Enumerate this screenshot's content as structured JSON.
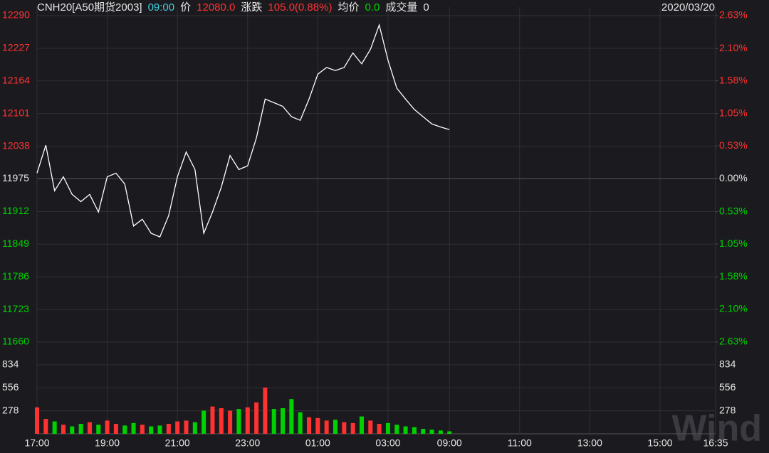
{
  "header": {
    "symbol": "CNH20[A50期货2003]",
    "time": "09:00",
    "price_label": "价",
    "price": "12080.0",
    "change_label": "涨跌",
    "change": "105.0(0.88%)",
    "avg_label": "均价",
    "avg": "0.0",
    "volume_label": "成交量",
    "volume": "0",
    "date": "2020/03/20"
  },
  "watermark": "Wind",
  "chart_data": [
    {
      "type": "line",
      "color": "#ffffff",
      "grid": true,
      "x": [
        0,
        15,
        30,
        45,
        60,
        75,
        90,
        105,
        120,
        135,
        150,
        165,
        180,
        195,
        210,
        225,
        240,
        255,
        270,
        285,
        300,
        315,
        330,
        345,
        360,
        375,
        390,
        405,
        420,
        435,
        450,
        465,
        480,
        495,
        510,
        525,
        540,
        555,
        570,
        585,
        600,
        615,
        630,
        645,
        660,
        675,
        690,
        705
      ],
      "values": [
        11986,
        12040,
        11952,
        11979,
        11945,
        11931,
        11945,
        11911,
        11979,
        11986,
        11965,
        11884,
        11897,
        11870,
        11863,
        11904,
        11979,
        12027,
        11993,
        11870,
        11911,
        11959,
        12020,
        11993,
        12000,
        12054,
        12129,
        12122,
        12115,
        12095,
        12088,
        12129,
        12177,
        12190,
        12184,
        12190,
        12218,
        12197,
        12225,
        12272,
        12204,
        12150,
        12129,
        12109,
        12095,
        12081,
        12075,
        12070
      ],
      "xlim": [
        0,
        1160
      ],
      "xticks": [
        {
          "value": 0,
          "label": "17:00"
        },
        {
          "value": 120,
          "label": "19:00"
        },
        {
          "value": 240,
          "label": "21:00"
        },
        {
          "value": 360,
          "label": "23:00"
        },
        {
          "value": 480,
          "label": "01:00"
        },
        {
          "value": 600,
          "label": "03:00"
        },
        {
          "value": 705,
          "label": "09:00"
        },
        {
          "value": 825,
          "label": "11:00"
        },
        {
          "value": 945,
          "label": "13:00"
        },
        {
          "value": 1065,
          "label": "15:00"
        },
        {
          "value": 1160,
          "label": "16:35"
        }
      ],
      "ylim": [
        11660,
        12290
      ],
      "yticks": [
        11660,
        11723,
        11786,
        11849,
        11912,
        11975,
        12038,
        12101,
        12164,
        12227,
        12290
      ],
      "y2lim": [
        -2.63,
        2.63
      ],
      "y2ticks": [
        {
          "value": -2.63,
          "label": "2.63%"
        },
        {
          "value": -2.1,
          "label": "2.10%"
        },
        {
          "value": -1.58,
          "label": "1.58%"
        },
        {
          "value": -1.05,
          "label": "1.05%"
        },
        {
          "value": -0.53,
          "label": "0.53%"
        },
        {
          "value": 0,
          "label": "0.00%"
        },
        {
          "value": 0.53,
          "label": "0.53%"
        },
        {
          "value": 1.05,
          "label": "1.05%"
        },
        {
          "value": 1.58,
          "label": "1.58%"
        },
        {
          "value": 2.1,
          "label": "2.10%"
        },
        {
          "value": 2.63,
          "label": "2.63%"
        }
      ]
    },
    {
      "type": "bar",
      "up_color": "#ff3232",
      "down_color": "#00d200",
      "x": [
        0,
        15,
        30,
        45,
        60,
        75,
        90,
        105,
        120,
        135,
        150,
        165,
        180,
        195,
        210,
        225,
        240,
        255,
        270,
        285,
        300,
        315,
        330,
        345,
        360,
        375,
        390,
        405,
        420,
        435,
        450,
        465,
        480,
        495,
        510,
        525,
        540,
        555,
        570,
        585,
        600,
        615,
        630,
        645,
        660,
        675,
        690,
        705
      ],
      "values": [
        320,
        180,
        150,
        110,
        90,
        120,
        140,
        110,
        160,
        120,
        100,
        130,
        110,
        90,
        100,
        120,
        150,
        160,
        140,
        280,
        330,
        310,
        280,
        300,
        320,
        380,
        560,
        300,
        310,
        420,
        260,
        200,
        190,
        160,
        170,
        140,
        130,
        210,
        160,
        120,
        130,
        110,
        90,
        80,
        60,
        50,
        40,
        30
      ],
      "ylim": [
        0,
        972
      ],
      "yticks": [
        278,
        556,
        834
      ]
    }
  ]
}
